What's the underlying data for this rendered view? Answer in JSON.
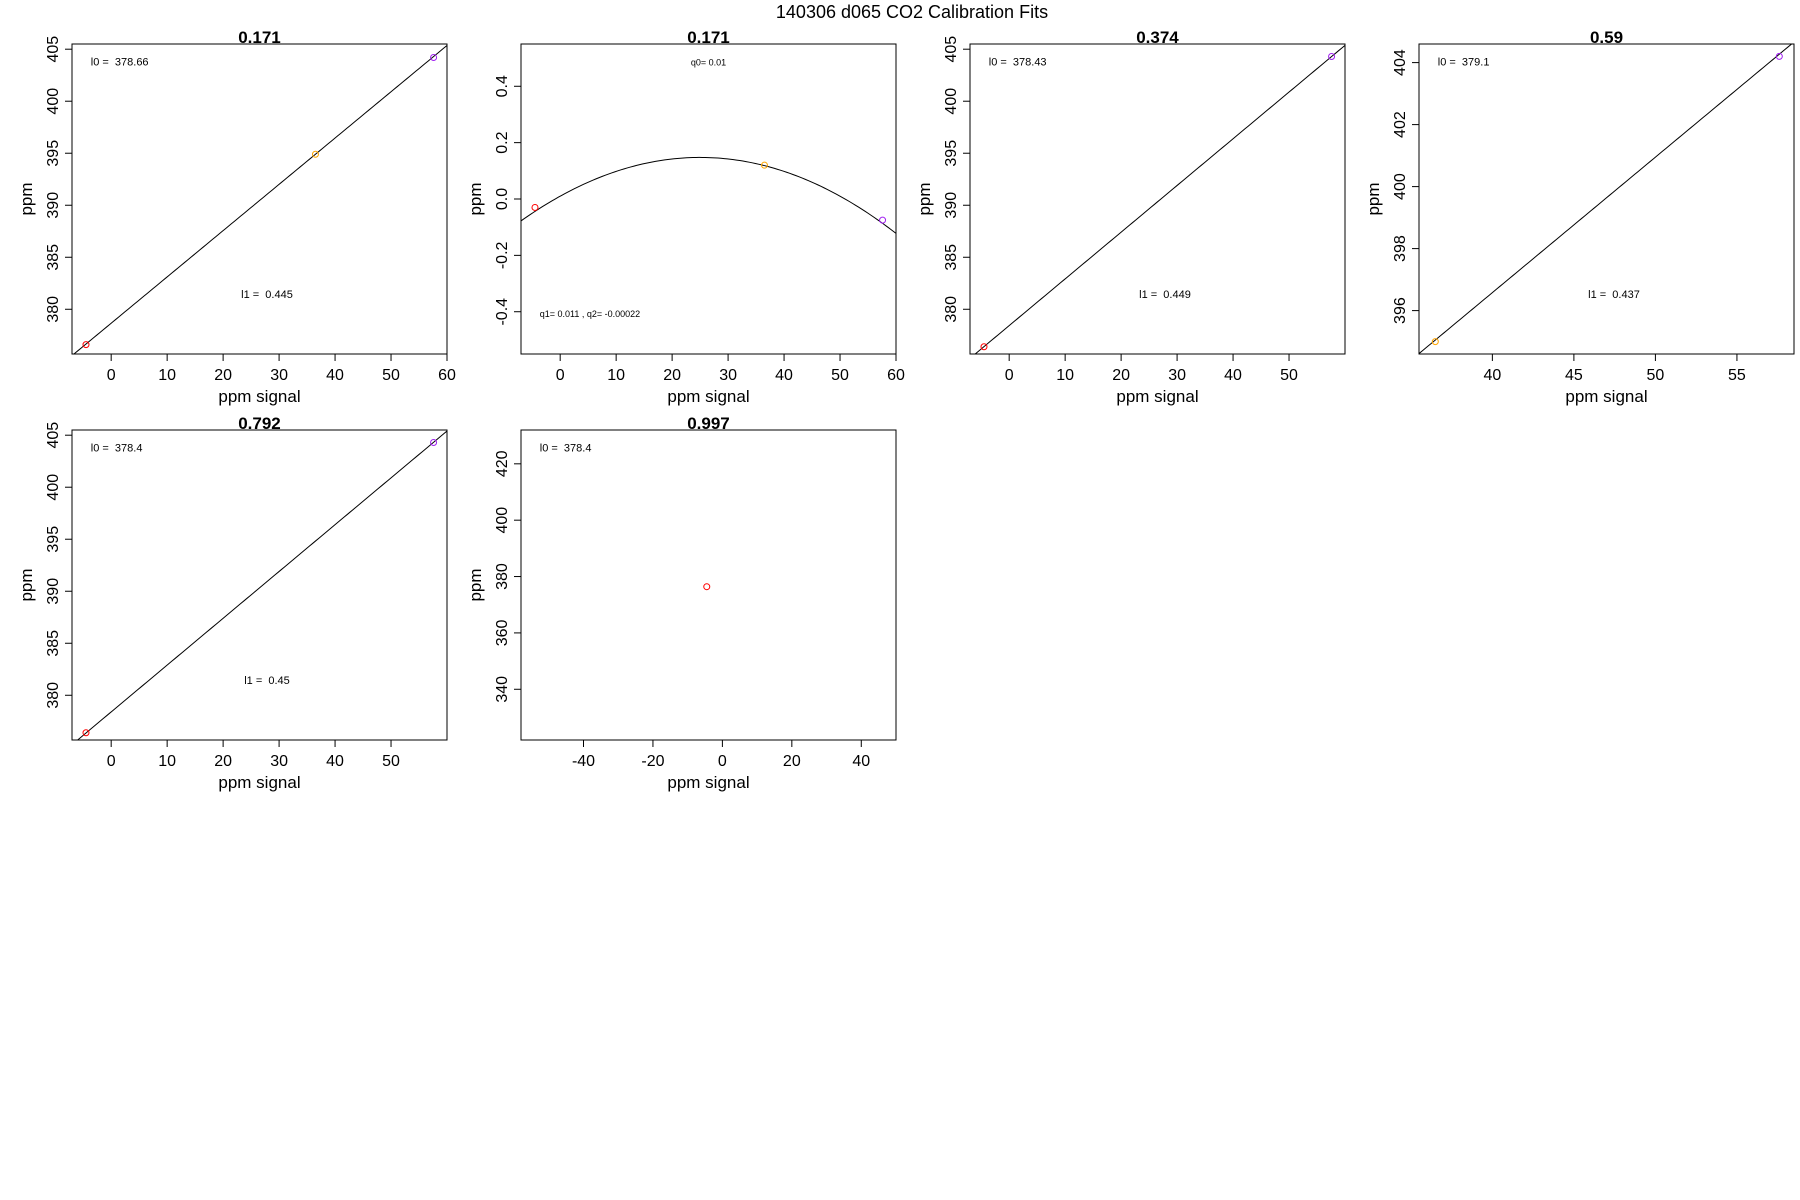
{
  "figure_title": "140306   d065   CO2 Calibration Fits",
  "chart_data": [
    {
      "type": "scatter",
      "title": "0.171",
      "xlabel": "ppm signal",
      "ylabel": "ppm",
      "xlim": [
        -7,
        60
      ],
      "ylim": [
        375.7,
        405.5
      ],
      "xticks": [
        0,
        10,
        20,
        30,
        40,
        50,
        60
      ],
      "yticks": [
        380,
        385,
        390,
        395,
        400,
        405
      ],
      "points": [
        {
          "x": -4.5,
          "y": 376.6,
          "color": "#ff0000"
        },
        {
          "x": 36.5,
          "y": 394.9,
          "color": "#ffa500"
        },
        {
          "x": 57.6,
          "y": 404.2,
          "color": "#a020f0"
        }
      ],
      "fit": {
        "kind": "linear",
        "intercept": 378.66,
        "slope": 0.445
      },
      "annotations": [
        "l0 =  378.66",
        "l1 =  0.445"
      ]
    },
    {
      "type": "scatter",
      "title": "0.171",
      "xlabel": "ppm signal",
      "ylabel": "ppm",
      "xlim": [
        -7,
        60
      ],
      "ylim": [
        -0.55,
        0.55
      ],
      "xticks": [
        0,
        10,
        20,
        30,
        40,
        50,
        60
      ],
      "yticks": [
        -0.4,
        -0.2,
        0.0,
        0.2,
        0.4
      ],
      "points": [
        {
          "x": -4.5,
          "y": -0.03,
          "color": "#ff0000"
        },
        {
          "x": 36.5,
          "y": 0.12,
          "color": "#ffa500"
        },
        {
          "x": 57.6,
          "y": -0.075,
          "color": "#a020f0"
        }
      ],
      "fit": {
        "kind": "quadratic",
        "q0": 0.01,
        "q1": 0.011,
        "q2": -0.00022
      },
      "annotations": [
        "q0= 0.01",
        "q1= 0.011 , q2= -0.00022"
      ]
    },
    {
      "type": "scatter",
      "title": "0.374",
      "xlabel": "ppm signal",
      "ylabel": "ppm",
      "xlim": [
        -7,
        60
      ],
      "ylim": [
        375.7,
        405.5
      ],
      "xticks": [
        0,
        10,
        20,
        30,
        40,
        50
      ],
      "yticks": [
        380,
        385,
        390,
        395,
        400,
        405
      ],
      "points": [
        {
          "x": -4.5,
          "y": 376.4,
          "color": "#ff0000"
        },
        {
          "x": 57.6,
          "y": 404.3,
          "color": "#a020f0"
        }
      ],
      "fit": {
        "kind": "linear",
        "intercept": 378.43,
        "slope": 0.449
      },
      "annotations": [
        "l0 =  378.43",
        "l1 =  0.449"
      ]
    },
    {
      "type": "scatter",
      "title": "0.59",
      "xlabel": "ppm signal",
      "ylabel": "ppm",
      "xlim": [
        35.5,
        58.5
      ],
      "ylim": [
        394.6,
        404.6
      ],
      "xticks": [
        40,
        45,
        50,
        55
      ],
      "yticks": [
        396,
        398,
        400,
        402,
        404
      ],
      "points": [
        {
          "x": 36.5,
          "y": 395.0,
          "color": "#ffa500"
        },
        {
          "x": 57.6,
          "y": 404.2,
          "color": "#a020f0"
        }
      ],
      "fit": {
        "kind": "linear",
        "intercept": 379.1,
        "slope": 0.437
      },
      "annotations": [
        "l0 =  379.1",
        "l1 =  0.437"
      ]
    },
    {
      "type": "scatter",
      "title": "0.792",
      "xlabel": "ppm signal",
      "ylabel": "ppm",
      "xlim": [
        -7,
        60
      ],
      "ylim": [
        375.7,
        405.5
      ],
      "xticks": [
        0,
        10,
        20,
        30,
        40,
        50
      ],
      "yticks": [
        380,
        385,
        390,
        395,
        400,
        405
      ],
      "points": [
        {
          "x": -4.5,
          "y": 376.4,
          "color": "#ff0000"
        },
        {
          "x": 57.6,
          "y": 404.3,
          "color": "#a020f0"
        }
      ],
      "fit": {
        "kind": "linear",
        "intercept": 378.4,
        "slope": 0.45
      },
      "annotations": [
        "l0 =  378.4",
        "l1 =  0.45"
      ]
    },
    {
      "type": "scatter",
      "title": "0.997",
      "xlabel": "ppm signal",
      "ylabel": "ppm",
      "xlim": [
        -58,
        50
      ],
      "ylim": [
        322,
        432
      ],
      "xticks": [
        -40,
        -20,
        0,
        20,
        40
      ],
      "yticks": [
        340,
        360,
        380,
        400,
        420
      ],
      "points": [
        {
          "x": -4.5,
          "y": 376.4,
          "color": "#ff0000"
        }
      ],
      "fit": null,
      "annotations": [
        "l0 =  378.4"
      ]
    }
  ]
}
